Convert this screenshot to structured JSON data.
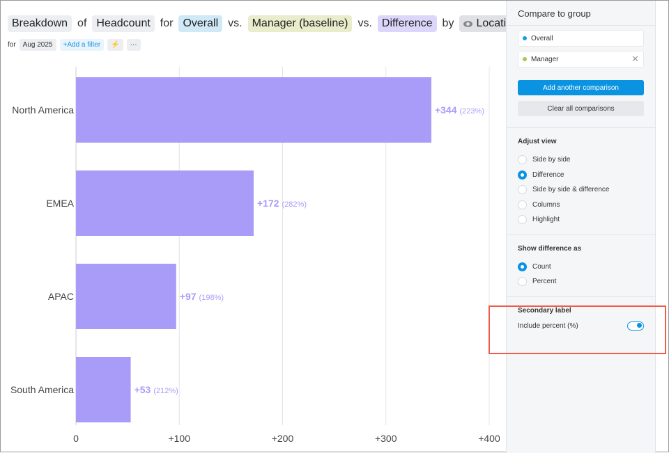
{
  "header": {
    "breakdown": "Breakdown",
    "of": "of",
    "measure": "Headcount",
    "for": "for",
    "overall": "Overall",
    "vs1": "vs.",
    "manager": "Manager (baseline)",
    "vs2": "vs.",
    "difference": "Difference",
    "by": "by",
    "location": "Location"
  },
  "filters": {
    "for": "for",
    "date": "Aug 2025",
    "add_filter": "+Add a filter",
    "more": "···"
  },
  "chart_data": {
    "type": "bar",
    "orientation": "horizontal",
    "categories": [
      "North America",
      "EMEA",
      "APAC",
      "South America"
    ],
    "values": [
      344,
      172,
      97,
      53
    ],
    "value_labels": [
      "+344",
      "+172",
      "+97",
      "+53"
    ],
    "percent_labels": [
      "(223%)",
      "(282%)",
      "(198%)",
      "(212%)"
    ],
    "xticks": [
      "0",
      "+100",
      "+200",
      "+300",
      "+400"
    ],
    "xlim": [
      0,
      400
    ],
    "grid": true,
    "color": "#a99cf8"
  },
  "sidebar": {
    "title": "Compare to group",
    "comparisons": [
      {
        "label": "Overall",
        "color": "#1a9be6"
      },
      {
        "label": "Manager",
        "color": "#a8c64e"
      }
    ],
    "add_button": "Add another comparison",
    "clear_button": "Clear all comparisons",
    "adjust_view": {
      "title": "Adjust view",
      "options": [
        "Side by side",
        "Difference",
        "Side by side & difference",
        "Columns",
        "Highlight"
      ],
      "selected": "Difference"
    },
    "show_difference": {
      "title": "Show difference as",
      "options": [
        "Count",
        "Percent"
      ],
      "selected": "Count"
    },
    "secondary_label": {
      "title": "Secondary label",
      "toggle_label": "Include percent (%)",
      "enabled": true
    }
  }
}
